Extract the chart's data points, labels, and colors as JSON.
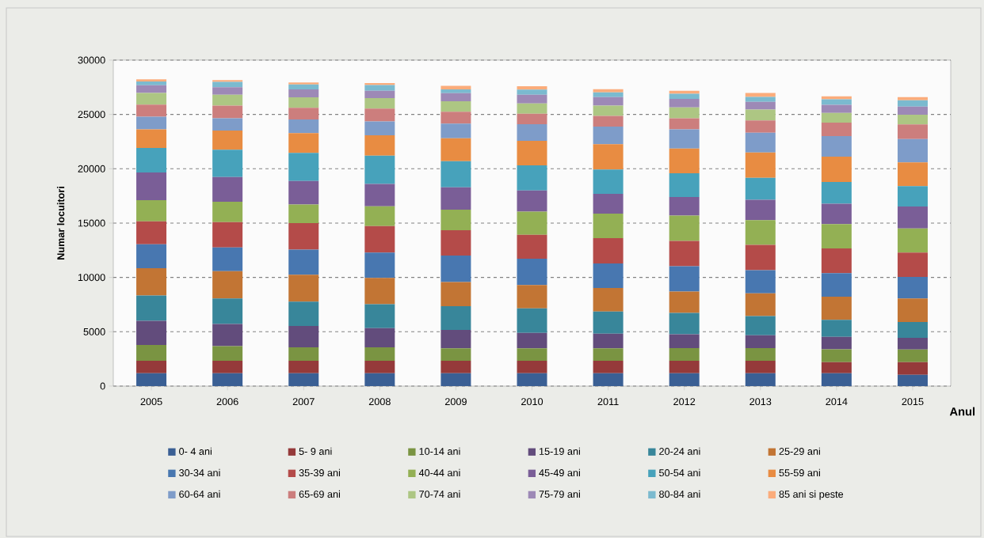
{
  "chart_data": {
    "type": "bar",
    "stacked": true,
    "xlabel": "Anul",
    "ylabel": "Numar locuitori",
    "categories": [
      "2005",
      "2006",
      "2007",
      "2008",
      "2009",
      "2010",
      "2011",
      "2012",
      "2013",
      "2014",
      "2015"
    ],
    "ylim": [
      0,
      30000
    ],
    "yticks": [
      0,
      5000,
      10000,
      15000,
      20000,
      25000,
      30000
    ],
    "grid": "y",
    "legend": "bottom",
    "series": [
      {
        "name": "0- 4 ani",
        "color": "#3a5f94",
        "values": [
          1190,
          1190,
          1190,
          1190,
          1190,
          1190,
          1190,
          1190,
          1190,
          1190,
          1040
        ]
      },
      {
        "name": "5- 9 ani",
        "color": "#953a3a",
        "values": [
          1140,
          1140,
          1140,
          1140,
          1140,
          1140,
          1140,
          1140,
          1140,
          1020,
          1160
        ]
      },
      {
        "name": "10-14 ani",
        "color": "#7a9442",
        "values": [
          1460,
          1340,
          1240,
          1240,
          1140,
          1140,
          1140,
          1170,
          1170,
          1170,
          1170
        ]
      },
      {
        "name": "15-19 ani",
        "color": "#624c7c",
        "values": [
          2210,
          2040,
          1970,
          1770,
          1700,
          1430,
          1360,
          1260,
          1170,
          1160,
          1070
        ]
      },
      {
        "name": "20-24 ani",
        "color": "#38869a",
        "values": [
          2330,
          2360,
          2230,
          2190,
          2180,
          2260,
          2040,
          1970,
          1770,
          1550,
          1460
        ]
      },
      {
        "name": "25-29 ani",
        "color": "#c27534",
        "values": [
          2520,
          2500,
          2480,
          2430,
          2230,
          2140,
          2160,
          1970,
          2090,
          2140,
          2160
        ]
      },
      {
        "name": "30-34 ani",
        "color": "#4877b0",
        "values": [
          2210,
          2190,
          2310,
          2330,
          2430,
          2430,
          2260,
          2330,
          2140,
          2160,
          1990
        ]
      },
      {
        "name": "35-39 ani",
        "color": "#b44b49",
        "values": [
          2110,
          2330,
          2430,
          2430,
          2330,
          2190,
          2330,
          2330,
          2330,
          2280,
          2230
        ]
      },
      {
        "name": "40-44 ani",
        "color": "#93b054",
        "values": [
          1940,
          1870,
          1720,
          1820,
          1890,
          2140,
          2260,
          2330,
          2280,
          2230,
          2230
        ]
      },
      {
        "name": "45-49 ani",
        "color": "#7a5e97",
        "values": [
          2550,
          2280,
          2160,
          2060,
          2060,
          1940,
          1820,
          1720,
          1870,
          1890,
          2020
        ]
      },
      {
        "name": "50-54 ani",
        "color": "#47a2bb",
        "values": [
          2260,
          2520,
          2600,
          2600,
          2400,
          2310,
          2230,
          2180,
          2010,
          1990,
          1870
        ]
      },
      {
        "name": "55-59 ani",
        "color": "#e88c42",
        "values": [
          1700,
          1750,
          1820,
          1890,
          2110,
          2260,
          2330,
          2280,
          2330,
          2330,
          2180
        ]
      },
      {
        "name": "60-64 ani",
        "color": "#7e9cc9",
        "values": [
          1170,
          1140,
          1240,
          1260,
          1360,
          1530,
          1630,
          1750,
          1820,
          1890,
          2160
        ]
      },
      {
        "name": "65-69 ani",
        "color": "#cc7e7d",
        "values": [
          1120,
          1170,
          1090,
          1190,
          1090,
          970,
          970,
          1020,
          1140,
          1240,
          1340
        ]
      },
      {
        "name": "70-74 ani",
        "color": "#adc683",
        "values": [
          1070,
          1000,
          950,
          970,
          970,
          950,
          950,
          1000,
          1000,
          900,
          900
        ]
      },
      {
        "name": "75-79 ani",
        "color": "#9d89b6",
        "values": [
          700,
          680,
          730,
          660,
          730,
          800,
          780,
          800,
          700,
          750,
          750
        ]
      },
      {
        "name": "80-84 ani",
        "color": "#7bbacf",
        "values": [
          360,
          490,
          460,
          530,
          360,
          460,
          440,
          460,
          460,
          510,
          580
        ]
      },
      {
        "name": "85 ani si peste",
        "color": "#fbac7b",
        "values": [
          190,
          170,
          190,
          190,
          320,
          320,
          290,
          270,
          360,
          270,
          290
        ]
      }
    ]
  }
}
